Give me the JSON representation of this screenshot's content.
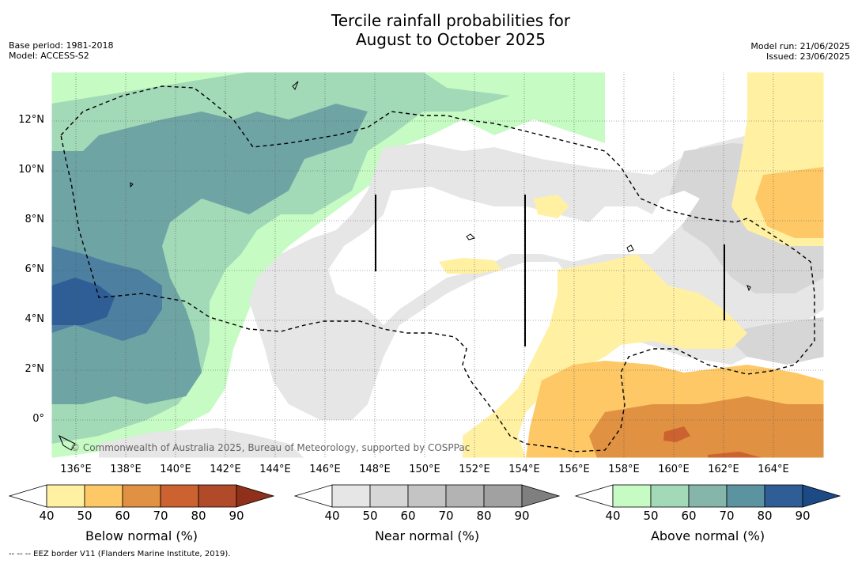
{
  "header": {
    "title_line1": "Tercile rainfall probabilities for",
    "title_line2": "August to October 2025",
    "base_period": "Base period: 1981-2018",
    "model": "Model: ACCESS-S2",
    "model_run": "Model run: 21/06/2025",
    "issued": "Issued: 23/06/2025"
  },
  "map": {
    "longitude_labels": [
      "136°E",
      "138°E",
      "140°E",
      "142°E",
      "144°E",
      "146°E",
      "148°E",
      "150°E",
      "152°E",
      "154°E",
      "156°E",
      "158°E",
      "160°E",
      "162°E",
      "164°E"
    ],
    "latitude_labels": [
      "12°N",
      "10°N",
      "8°N",
      "6°N",
      "4°N",
      "2°N",
      "0°"
    ],
    "copyright": "© Commonwealth of Australia 2025, Bureau of Meteorology, supported by COSPPac"
  },
  "colorbars": [
    {
      "title": "Below normal (%)",
      "ticks": [
        "40",
        "50",
        "60",
        "70",
        "80",
        "90"
      ],
      "colors": [
        "#ffffff",
        "#fff0a2",
        "#fdc865",
        "#e09141",
        "#cb622f",
        "#b04a28",
        "#8e301a"
      ]
    },
    {
      "title": "Near normal (%)",
      "ticks": [
        "40",
        "50",
        "60",
        "70",
        "80",
        "90"
      ],
      "colors": [
        "#ffffff",
        "#e6e6e6",
        "#d6d6d6",
        "#c4c4c4",
        "#b3b3b3",
        "#a1a1a1",
        "#7f7f7f"
      ]
    },
    {
      "title": "Above normal (%)",
      "ticks": [
        "40",
        "50",
        "60",
        "70",
        "80",
        "90"
      ],
      "colors": [
        "#ffffff",
        "#c6fbc4",
        "#a2d9b7",
        "#86b6a9",
        "#5b93a0",
        "#2f5e96",
        "#1b4a85"
      ]
    }
  ],
  "footnote": "--  --  -- EEZ border V11 (Flanders Marine Institute, 2019)."
}
